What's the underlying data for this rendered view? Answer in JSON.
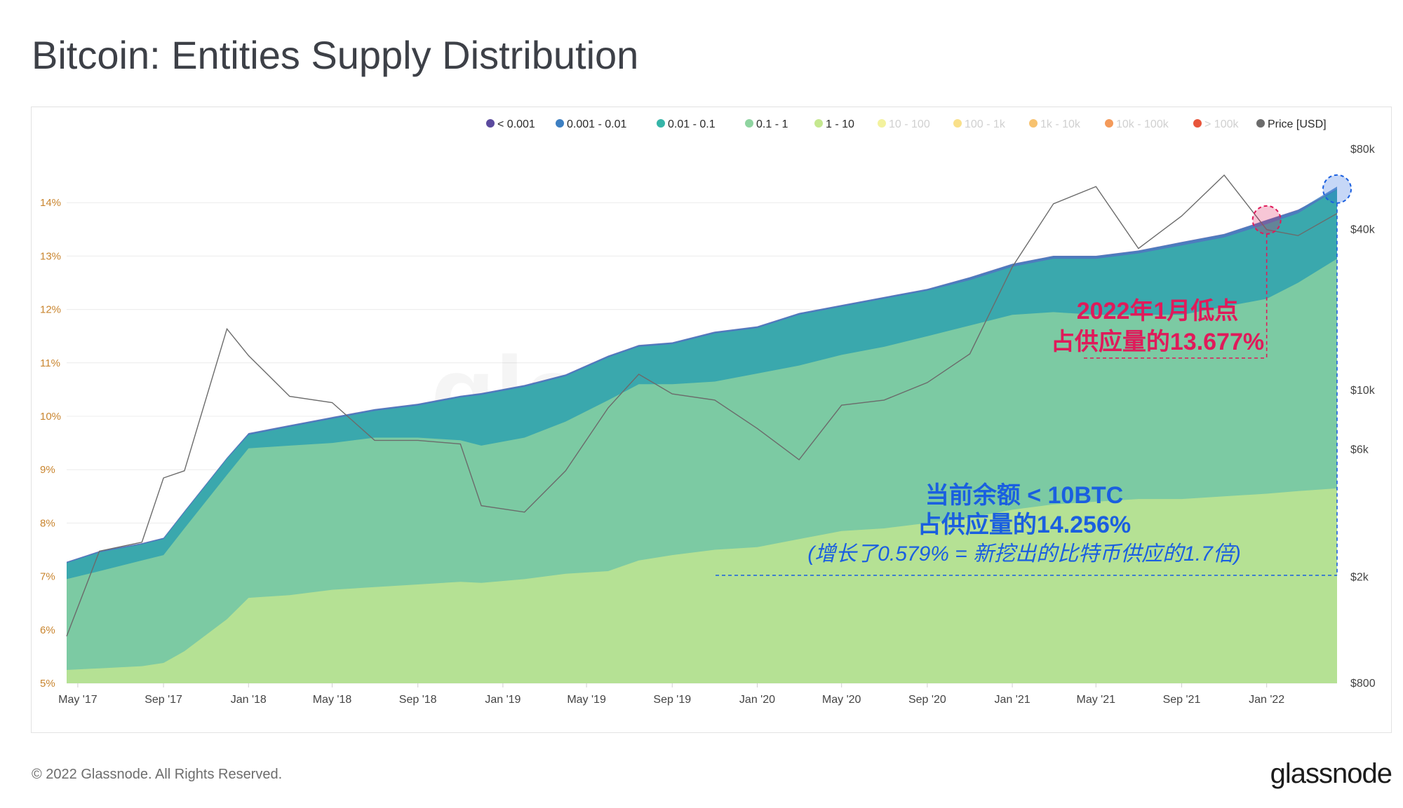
{
  "header": {
    "title": "Bitcoin: Entities Supply Distribution"
  },
  "footer": {
    "copyright": "© 2022 Glassnode. All Rights Reserved.",
    "logo": "glassnode"
  },
  "watermark": "glassnode",
  "annotations": {
    "jan_low_line1": "2022年1月低点",
    "jan_low_line2": "占供应量的13.677%",
    "current_line1": "当前余额 < 10BTC",
    "current_line2": "占供应量的14.256%",
    "current_line3": "(增长了0.579% = 新挖出的比特币供应的1.7倍)",
    "colors": {
      "red": "#e01a5a",
      "blue": "#1a5fe0"
    }
  },
  "chart_data": {
    "type": "area",
    "stacked": true,
    "title": "Bitcoin: Entities Supply Distribution",
    "x_ticks": [
      "May '17",
      "Sep '17",
      "Jan '18",
      "May '18",
      "Sep '18",
      "Jan '19",
      "May '19",
      "Sep '19",
      "Jan '20",
      "May '20",
      "Sep '20",
      "Jan '21",
      "May '21",
      "Sep '21",
      "Jan '22"
    ],
    "x_range": [
      "2017-04-15",
      "2022-04-12"
    ],
    "y_left": {
      "ticks": [
        "5%",
        "6%",
        "7%",
        "8%",
        "9%",
        "10%",
        "11%",
        "12%",
        "13%",
        "14%"
      ],
      "range": [
        5,
        15
      ]
    },
    "y_right": {
      "label": "Price [USD]",
      "scale": "log",
      "ticks": [
        "$800",
        "$2k",
        "$6k",
        "$10k",
        "$40k",
        "$80k"
      ],
      "range": [
        800,
        80000
      ]
    },
    "grid": true,
    "legend_position": "top-right",
    "legend": [
      {
        "name": "< 0.001",
        "color": "#5b4a9e",
        "active": true
      },
      {
        "name": "0.001 - 0.01",
        "color": "#3d7fc2",
        "active": true
      },
      {
        "name": "0.01 - 0.1",
        "color": "#36b5a8",
        "active": true
      },
      {
        "name": "0.1 - 1",
        "color": "#8fd4a0",
        "active": true
      },
      {
        "name": "1 - 10",
        "color": "#c5e88f",
        "active": true
      },
      {
        "name": "10 - 100",
        "color": "#f3f29e",
        "active": false
      },
      {
        "name": "100 - 1k",
        "color": "#f9e08a",
        "active": false
      },
      {
        "name": "1k - 10k",
        "color": "#f7c26f",
        "active": false
      },
      {
        "name": "10k - 100k",
        "color": "#f49a5a",
        "active": false
      },
      {
        "name": "> 100k",
        "color": "#e8553b",
        "active": false
      },
      {
        "name": "Price [USD]",
        "color": "#6b6b6b",
        "active": true
      }
    ],
    "dates": [
      "2017-04-15",
      "2017-06-01",
      "2017-08-01",
      "2017-09-01",
      "2017-10-01",
      "2017-12-01",
      "2018-01-01",
      "2018-03-01",
      "2018-05-01",
      "2018-07-01",
      "2018-09-01",
      "2018-11-01",
      "2018-12-01",
      "2019-02-01",
      "2019-04-01",
      "2019-06-01",
      "2019-07-15",
      "2019-09-01",
      "2019-11-01",
      "2020-01-01",
      "2020-03-01",
      "2020-05-01",
      "2020-07-01",
      "2020-09-01",
      "2020-11-01",
      "2021-01-01",
      "2021-03-01",
      "2021-05-01",
      "2021-07-01",
      "2021-09-01",
      "2021-11-01",
      "2022-01-01",
      "2022-02-15",
      "2022-04-12"
    ],
    "series": [
      {
        "name": "1 - 10",
        "values": [
          5.25,
          5.28,
          5.32,
          5.38,
          5.6,
          6.2,
          6.6,
          6.65,
          6.75,
          6.8,
          6.85,
          6.9,
          6.88,
          6.95,
          7.05,
          7.1,
          7.3,
          7.4,
          7.5,
          7.55,
          7.7,
          7.85,
          7.9,
          8.0,
          8.1,
          8.25,
          8.35,
          8.4,
          8.45,
          8.45,
          8.5,
          8.55,
          8.6,
          8.65
        ]
      },
      {
        "name": "0.1 - 1",
        "values": [
          6.95,
          7.1,
          7.3,
          7.4,
          7.9,
          8.9,
          9.4,
          9.45,
          9.5,
          9.6,
          9.6,
          9.55,
          9.45,
          9.6,
          9.9,
          10.3,
          10.6,
          10.6,
          10.65,
          10.8,
          10.95,
          11.15,
          11.3,
          11.5,
          11.7,
          11.9,
          11.95,
          11.9,
          11.9,
          11.9,
          12.05,
          12.2,
          12.5,
          12.95
        ]
      },
      {
        "name": "0.01 - 0.1",
        "values": [
          7.25,
          7.45,
          7.6,
          7.7,
          8.2,
          9.2,
          9.65,
          9.8,
          9.95,
          10.1,
          10.2,
          10.35,
          10.4,
          10.55,
          10.75,
          11.1,
          11.3,
          11.35,
          11.55,
          11.65,
          11.9,
          12.05,
          12.2,
          12.35,
          12.55,
          12.8,
          12.95,
          12.95,
          13.05,
          13.2,
          13.35,
          13.6,
          13.8,
          14.25
        ]
      },
      {
        "name": "0.001 - 0.01",
        "values": [
          7.27,
          7.47,
          7.62,
          7.72,
          8.22,
          9.22,
          9.68,
          9.83,
          9.98,
          10.13,
          10.23,
          10.38,
          10.43,
          10.58,
          10.78,
          11.13,
          11.33,
          11.38,
          11.58,
          11.68,
          11.93,
          12.08,
          12.23,
          12.38,
          12.6,
          12.85,
          13.0,
          13.0,
          13.1,
          13.26,
          13.41,
          13.67,
          13.86,
          14.3
        ]
      },
      {
        "name": "< 0.001",
        "values": [
          7.275,
          7.475,
          7.625,
          7.725,
          8.225,
          9.225,
          9.685,
          9.835,
          9.985,
          10.135,
          10.235,
          10.385,
          10.435,
          10.585,
          10.785,
          11.135,
          11.335,
          11.385,
          11.585,
          11.685,
          11.935,
          12.085,
          12.235,
          12.385,
          12.605,
          12.855,
          13.005,
          13.005,
          13.105,
          13.265,
          13.415,
          13.677,
          13.87,
          14.256
        ]
      },
      {
        "name": "Price [USD]",
        "axis": "right",
        "values": [
          1200,
          2500,
          2700,
          4700,
          5000,
          17000,
          13500,
          9500,
          9000,
          6500,
          6500,
          6300,
          3700,
          3500,
          5000,
          8600,
          11500,
          9700,
          9200,
          7200,
          5500,
          8800,
          9200,
          10700,
          13700,
          29000,
          50000,
          58000,
          34000,
          45000,
          64000,
          40000,
          38000,
          46000
        ]
      }
    ]
  }
}
